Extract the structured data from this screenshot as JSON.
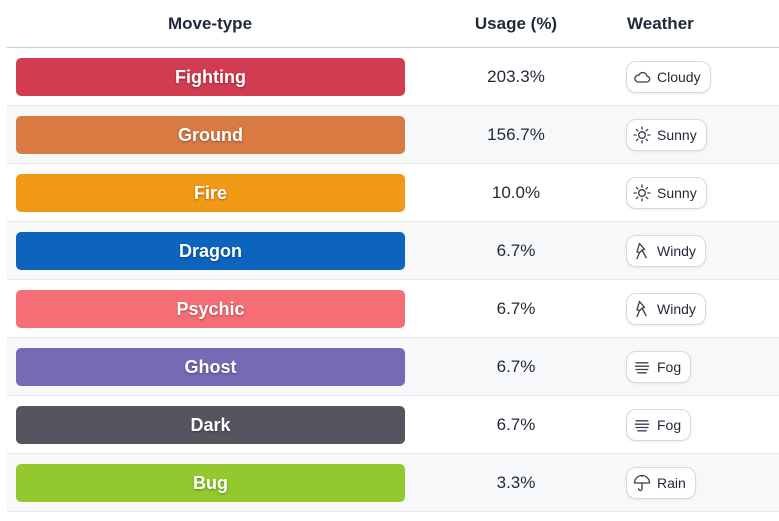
{
  "table": {
    "headers": {
      "type": "Move-type",
      "usage": "Usage (%)",
      "weather": "Weather"
    },
    "rows": [
      {
        "type": "Fighting",
        "color": "#d23c50",
        "usage": "203.3%",
        "weather": "Cloudy",
        "weather_icon": "cloud-icon"
      },
      {
        "type": "Ground",
        "color": "#d87a42",
        "usage": "156.7%",
        "weather": "Sunny",
        "weather_icon": "sun-icon"
      },
      {
        "type": "Fire",
        "color": "#f09916",
        "usage": "10.0%",
        "weather": "Sunny",
        "weather_icon": "sun-icon"
      },
      {
        "type": "Dragon",
        "color": "#0d64bd",
        "usage": "6.7%",
        "weather": "Windy",
        "weather_icon": "wind-icon"
      },
      {
        "type": "Psychic",
        "color": "#f56d75",
        "usage": "6.7%",
        "weather": "Windy",
        "weather_icon": "wind-icon"
      },
      {
        "type": "Ghost",
        "color": "#7769b5",
        "usage": "6.7%",
        "weather": "Fog",
        "weather_icon": "fog-icon"
      },
      {
        "type": "Dark",
        "color": "#57545f",
        "usage": "6.7%",
        "weather": "Fog",
        "weather_icon": "fog-icon"
      },
      {
        "type": "Bug",
        "color": "#93c92e",
        "usage": "3.3%",
        "weather": "Rain",
        "weather_icon": "umbrella-icon"
      }
    ]
  }
}
